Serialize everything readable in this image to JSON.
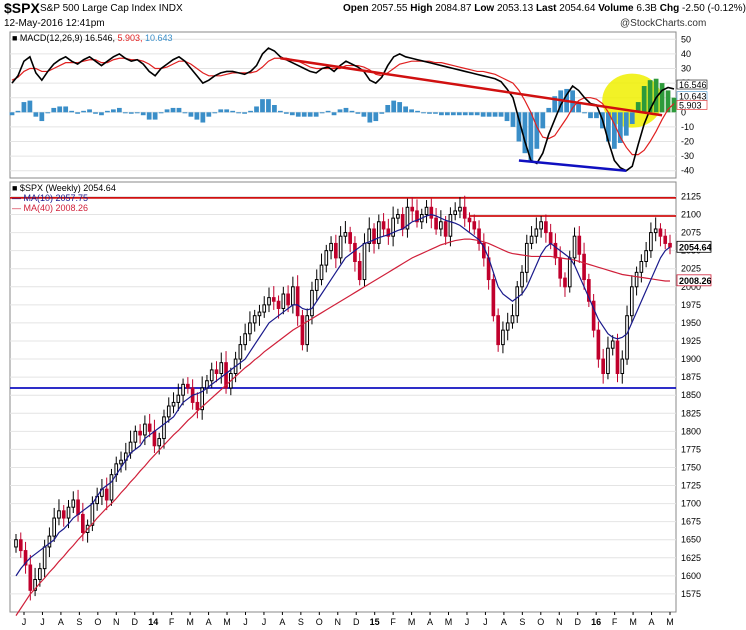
{
  "header": {
    "symbol": "$SPX",
    "name": "S&P 500 Large Cap Index INDX",
    "date": "12-May-2016 12:41pm",
    "open_label": "Open",
    "open": "2057.55",
    "high_label": "High",
    "high": "2084.87",
    "low_label": "Low",
    "low": "2053.13",
    "last_label": "Last",
    "last": "2054.64",
    "volume_label": "Volume",
    "volume": "6.3B",
    "chg_label": "Chg",
    "chg": "-2.50 (-0.12%)",
    "brand": "@StockCharts.com"
  },
  "colors": {
    "up": "#000000",
    "down": "#c0002c",
    "ma10": "#1a1a8c",
    "ma40": "#d0203a",
    "macd": "#000000",
    "signal": "#e02020",
    "hist": "#3a8ec8",
    "hist_hi": "#2d9a3a",
    "resistance": "#d01010",
    "support": "#1010c0",
    "highlight": "#f0f000"
  },
  "chart_data": [
    {
      "type": "line",
      "title": "MACD(12,26,9) 16.546, 5.903, 10.643",
      "legend": {
        "macd": "MACD(12,26,9)",
        "macd_value": "16.546",
        "signal_value": "5.903",
        "hist_value": "10.643"
      },
      "y_ticks": [
        50,
        40,
        30,
        20,
        10,
        0,
        -10,
        -20,
        -30,
        -40
      ],
      "ylim": [
        -45,
        55
      ],
      "last_labels": [
        "16.546",
        "10.643",
        "5.903"
      ],
      "macd": [
        20,
        25,
        35,
        38,
        27,
        22,
        28,
        33,
        36,
        38,
        35,
        33,
        36,
        38,
        35,
        32,
        35,
        38,
        40,
        37,
        35,
        36,
        33,
        28,
        25,
        30,
        33,
        36,
        38,
        35,
        30,
        25,
        20,
        22,
        25,
        27,
        28,
        28,
        27,
        26,
        28,
        32,
        40,
        44,
        42,
        38,
        36,
        34,
        32,
        30,
        28,
        27,
        30,
        31,
        28,
        32,
        35,
        33,
        31,
        28,
        22,
        20,
        24,
        32,
        38,
        40,
        38,
        37,
        36,
        35,
        34,
        33,
        32,
        31,
        30,
        29,
        28,
        27,
        26,
        25,
        24,
        23,
        21,
        16,
        10,
        -5,
        -20,
        -33,
        -35,
        -28,
        -15,
        -5,
        5,
        12,
        18,
        15,
        10,
        6,
        5,
        -5,
        -20,
        -33,
        -38,
        -40,
        -37,
        -22,
        -8,
        2,
        10,
        15,
        17,
        16
      ],
      "signal": [
        22,
        24,
        28,
        30,
        30,
        28,
        28,
        30,
        32,
        34,
        34,
        34,
        35,
        36,
        36,
        34,
        34,
        36,
        37,
        37,
        36,
        36,
        35,
        33,
        30,
        30,
        31,
        33,
        35,
        35,
        33,
        30,
        27,
        25,
        25,
        25,
        26,
        27,
        27,
        27,
        27,
        28,
        31,
        35,
        37,
        37,
        37,
        36,
        35,
        33,
        31,
        30,
        30,
        30,
        30,
        30,
        32,
        32,
        32,
        31,
        29,
        26,
        25,
        27,
        30,
        33,
        34,
        35,
        35,
        35,
        35,
        34,
        34,
        33,
        32,
        31,
        30,
        29,
        28,
        28,
        27,
        26,
        24,
        22,
        20,
        15,
        8,
        0,
        -10,
        -17,
        -18,
        -16,
        -10,
        -4,
        3,
        8,
        10,
        10,
        9,
        6,
        0,
        -8,
        -17,
        -24,
        -29,
        -29,
        -26,
        -20,
        -13,
        -5,
        2,
        6
      ],
      "histogram": [
        -2,
        1,
        7,
        8,
        -3,
        -6,
        0,
        3,
        4,
        4,
        1,
        -1,
        1,
        2,
        -1,
        -2,
        1,
        2,
        3,
        0,
        -1,
        0,
        -2,
        -5,
        -5,
        0,
        2,
        3,
        3,
        0,
        -3,
        -5,
        -7,
        -3,
        0,
        2,
        2,
        1,
        0,
        -1,
        1,
        4,
        9,
        9,
        5,
        1,
        -1,
        -2,
        -3,
        -3,
        -3,
        -3,
        0,
        1,
        -2,
        2,
        3,
        1,
        -1,
        -3,
        -7,
        -6,
        -1,
        5,
        8,
        7,
        4,
        2,
        1,
        0,
        -1,
        -1,
        -2,
        -2,
        -2,
        -2,
        -2,
        -2,
        -2,
        -3,
        -3,
        -3,
        -3,
        -6,
        -10,
        -20,
        -28,
        -33,
        -25,
        -11,
        3,
        11,
        15,
        16,
        15,
        7,
        0,
        -4,
        -4,
        -11,
        -20,
        -25,
        -21,
        -16,
        -8,
        7,
        18,
        22,
        23,
        20,
        15,
        10
      ]
    },
    {
      "type": "candlestick",
      "title": "$SPX (Weekly) 2054.64",
      "legend": [
        {
          "name": "MA(10)",
          "value": "2057.75"
        },
        {
          "name": "MA(40)",
          "value": "2008.26"
        }
      ],
      "y_ticks": [
        2125,
        2100,
        2075,
        2050,
        2025,
        2000,
        1975,
        1950,
        1925,
        1900,
        1875,
        1850,
        1825,
        1800,
        1775,
        1750,
        1725,
        1700,
        1675,
        1650,
        1625,
        1600,
        1575
      ],
      "ylim": [
        1550,
        2145
      ],
      "x_ticks": [
        "J",
        "J",
        "A",
        "S",
        "O",
        "N",
        "D",
        "14",
        "F",
        "M",
        "A",
        "M",
        "J",
        "J",
        "A",
        "S",
        "O",
        "N",
        "D",
        "15",
        "F",
        "M",
        "A",
        "M",
        "J",
        "J",
        "A",
        "S",
        "O",
        "N",
        "D",
        "16",
        "F",
        "M",
        "A",
        "M"
      ],
      "last_labels": [
        "2054.64",
        "2008.26"
      ],
      "close": [
        1650,
        1635,
        1615,
        1580,
        1595,
        1610,
        1640,
        1655,
        1680,
        1690,
        1680,
        1695,
        1705,
        1685,
        1660,
        1670,
        1700,
        1710,
        1720,
        1705,
        1740,
        1755,
        1760,
        1770,
        1785,
        1800,
        1795,
        1810,
        1800,
        1780,
        1790,
        1820,
        1835,
        1840,
        1850,
        1865,
        1860,
        1840,
        1830,
        1860,
        1870,
        1885,
        1880,
        1895,
        1860,
        1880,
        1900,
        1920,
        1935,
        1950,
        1960,
        1965,
        1975,
        1985,
        1980,
        1970,
        1990,
        1975,
        2000,
        1960,
        1920,
        1960,
        1995,
        2010,
        2030,
        2050,
        2060,
        2040,
        2070,
        2075,
        2060,
        2035,
        2010,
        2060,
        2080,
        2060,
        2090,
        2080,
        2070,
        2095,
        2100,
        2080,
        2110,
        2105,
        2090,
        2100,
        2110,
        2095,
        2080,
        2090,
        2070,
        2100,
        2105,
        2110,
        2095,
        2090,
        2080,
        2060,
        2040,
        2010,
        1960,
        1920,
        1940,
        1950,
        1960,
        2000,
        2020,
        2060,
        2070,
        2080,
        2090,
        2075,
        2060,
        2040,
        2012,
        2000,
        2040,
        2070,
        2045,
        2010,
        1980,
        1940,
        1900,
        1880,
        1915,
        1925,
        1880,
        1900,
        1960,
        2000,
        2020,
        2035,
        2050,
        2075,
        2080,
        2070,
        2060,
        2055
      ],
      "ma10": [
        1600,
        1610,
        1618,
        1625,
        1630,
        1635,
        1640,
        1645,
        1650,
        1660,
        1665,
        1672,
        1680,
        1685,
        1690,
        1695,
        1700,
        1710,
        1720,
        1725,
        1730,
        1740,
        1750,
        1760,
        1770,
        1775,
        1780,
        1790,
        1795,
        1800,
        1805,
        1810,
        1815,
        1820,
        1830,
        1840,
        1845,
        1850,
        1852,
        1855,
        1860,
        1865,
        1870,
        1875,
        1880,
        1885,
        1890,
        1895,
        1900,
        1910,
        1920,
        1930,
        1940,
        1950,
        1955,
        1960,
        1965,
        1970,
        1975,
        1975,
        1970,
        1968,
        1970,
        1980,
        1990,
        2000,
        2010,
        2020,
        2030,
        2040,
        2045,
        2050,
        2055,
        2060,
        2062,
        2065,
        2068,
        2070,
        2072,
        2075,
        2078,
        2080,
        2085,
        2090,
        2092,
        2095,
        2098,
        2100,
        2098,
        2095,
        2092,
        2090,
        2088,
        2085,
        2080,
        2075,
        2070,
        2065,
        2055,
        2040,
        2020,
        2000,
        1990,
        1985,
        1980,
        1985,
        1990,
        2000,
        2015,
        2030,
        2045,
        2055,
        2060,
        2055,
        2050,
        2045,
        2040,
        2030,
        2015,
        2000,
        1985,
        1970,
        1955,
        1945,
        1935,
        1930,
        1928,
        1930,
        1935,
        1950,
        1965,
        1980,
        1995,
        2010,
        2025,
        2040,
        2050,
        2055
      ],
      "ma40": [
        1545,
        1555,
        1565,
        1575,
        1582,
        1590,
        1597,
        1605,
        1612,
        1620,
        1627,
        1635,
        1642,
        1650,
        1657,
        1665,
        1672,
        1680,
        1687,
        1694,
        1700,
        1707,
        1715,
        1722,
        1730,
        1737,
        1745,
        1752,
        1760,
        1767,
        1774,
        1781,
        1788,
        1795,
        1801,
        1808,
        1815,
        1821,
        1828,
        1834,
        1840,
        1846,
        1852,
        1858,
        1864,
        1870,
        1876,
        1882,
        1888,
        1893,
        1899,
        1904,
        1910,
        1915,
        1920,
        1925,
        1930,
        1935,
        1940,
        1944,
        1948,
        1952,
        1956,
        1960,
        1964,
        1968,
        1972,
        1976,
        1980,
        1984,
        1988,
        1992,
        1996,
        2000,
        2004,
        2008,
        2012,
        2016,
        2020,
        2024,
        2028,
        2032,
        2036,
        2040,
        2043,
        2046,
        2049,
        2052,
        2055,
        2058,
        2060,
        2062,
        2064,
        2065,
        2066,
        2066,
        2065,
        2064,
        2062,
        2060,
        2057,
        2054,
        2051,
        2048,
        2046,
        2045,
        2044,
        2043,
        2042,
        2042,
        2042,
        2042,
        2042,
        2041,
        2040,
        2039,
        2038,
        2037,
        2035,
        2033,
        2031,
        2029,
        2027,
        2025,
        2023,
        2021,
        2019,
        2017,
        2016,
        2015,
        2014,
        2013,
        2012,
        2011,
        2010,
        2009,
        2008,
        2008
      ]
    }
  ]
}
